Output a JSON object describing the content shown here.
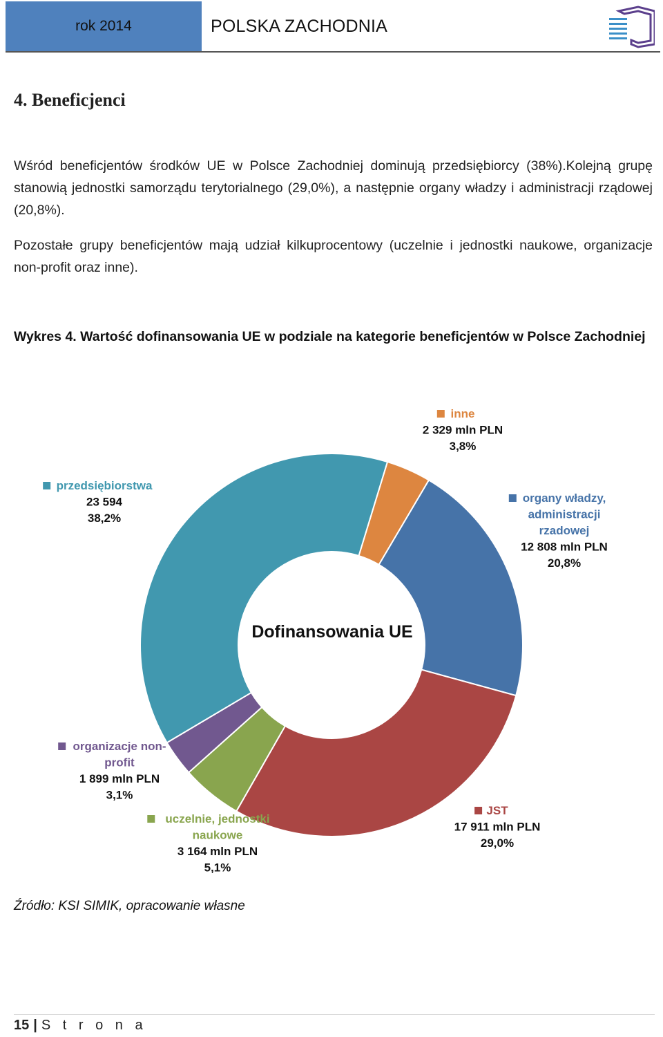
{
  "header": {
    "year": "rok 2014",
    "region": "POLSKA ZACHODNIA",
    "logo_icon": "pz-logo-icon",
    "accent_color": "#4f81bd"
  },
  "section": {
    "title": "4.  Beneficjenci",
    "paragraph1": "Wśród beneficjentów środków UE w Polsce Zachodniej dominują przedsiębiorcy (38%).Kolejną grupę stanowią jednostki samorządu terytorialnego (29,0%), a następnie organy władzy i administracji rządowej (20,8%).",
    "paragraph2": "Pozostałe grupy beneficjentów mają udział kilkuprocentowy (uczelnie i jednostki naukowe, organizacje non-profit oraz inne)."
  },
  "figure": {
    "title": "Wykres 4. Wartość dofinansowania UE w podziale na kategorie beneficjentów w Polsce Zachodniej",
    "source": "Źródło: KSI SIMIK, opracowanie własne"
  },
  "chart_data": {
    "type": "pie",
    "donut": true,
    "center_label": "Dofinansowania UE",
    "legend": "none",
    "slices": [
      {
        "name_lines": [
          "inne"
        ],
        "value": 2329,
        "value_label": "2 329 mln PLN",
        "percent": 3.8,
        "percent_label": "3,8%",
        "color": "#dd8640"
      },
      {
        "name_lines": [
          "organy władzy,",
          "administracji",
          "rzadowej"
        ],
        "value": 12808,
        "value_label": "12 808 mln PLN",
        "percent": 20.8,
        "percent_label": "20,8%",
        "color": "#4673a8"
      },
      {
        "name_lines": [
          "JST"
        ],
        "value": 17911,
        "value_label": "17 911 mln PLN",
        "percent": 29.0,
        "percent_label": "29,0%",
        "color": "#aa4644"
      },
      {
        "name_lines": [
          "uczelnie, jednostki",
          "naukowe"
        ],
        "value": 3164,
        "value_label": "3 164 mln PLN",
        "percent": 5.1,
        "percent_label": "5,1%",
        "color": "#89a54e"
      },
      {
        "name_lines": [
          "organizacje non-",
          "profit"
        ],
        "value": 1899,
        "value_label": "1 899 mln PLN",
        "percent": 3.1,
        "percent_label": "3,1%",
        "color": "#71588f"
      },
      {
        "name_lines": [
          "przedsiębiorstwa"
        ],
        "value": 23594,
        "value_label": "23 594",
        "percent": 38.2,
        "percent_label": "38,2%",
        "color": "#4198af"
      }
    ]
  },
  "footer": {
    "page_number": "15",
    "separator": "|",
    "page_word": "S t r o n a"
  }
}
